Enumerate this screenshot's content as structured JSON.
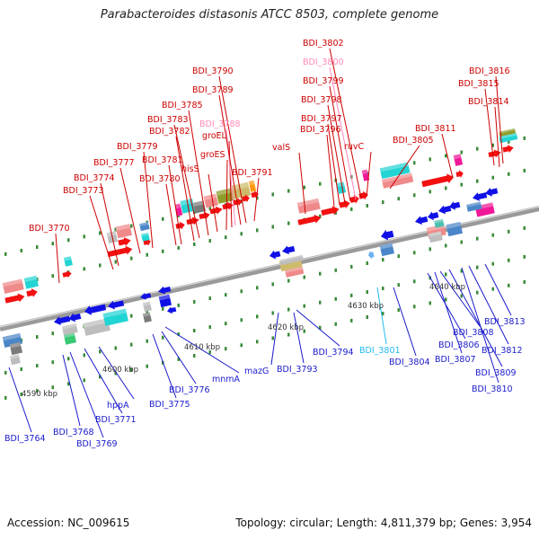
{
  "header": {
    "title": "Parabacteroides distasonis ATCC 8503, complete genome"
  },
  "footer": {
    "accession": "Accession: NC_009615",
    "summary": "Topology: circular; Length: 4,811,379 bp; Genes: 3,954"
  },
  "colors": {
    "forward_label": "#cc0000",
    "reverse_label": "#1a1acc",
    "rna_label": "#ff88bb",
    "pseudo_label": "#22bbee",
    "axis": "#8a8a8a"
  },
  "kbp_ticks": [
    "4590 kbp",
    "4600 kbp",
    "4610 kbp",
    "4620 kbp",
    "4630 kbp",
    "4640 kbp"
  ],
  "top_labels": [
    {
      "text": "BDI_3770",
      "kind": "forward"
    },
    {
      "text": "BDI_3773",
      "kind": "forward"
    },
    {
      "text": "BDI_3774",
      "kind": "forward"
    },
    {
      "text": "BDI_3777",
      "kind": "forward"
    },
    {
      "text": "BDI_3779",
      "kind": "forward"
    },
    {
      "text": "BDI_3780",
      "kind": "forward"
    },
    {
      "text": "BDI_3781",
      "kind": "forward"
    },
    {
      "text": "BDI_3782",
      "kind": "forward"
    },
    {
      "text": "BDI_3783",
      "kind": "forward"
    },
    {
      "text": "BDI_3785",
      "kind": "forward"
    },
    {
      "text": "hisS",
      "kind": "forward"
    },
    {
      "text": "groES",
      "kind": "forward"
    },
    {
      "text": "groEL",
      "kind": "forward"
    },
    {
      "text": "BDI_3788",
      "kind": "rna"
    },
    {
      "text": "BDI_3789",
      "kind": "forward"
    },
    {
      "text": "BDI_3790",
      "kind": "forward"
    },
    {
      "text": "BDI_3791",
      "kind": "forward"
    },
    {
      "text": "valS",
      "kind": "forward"
    },
    {
      "text": "BDI_3796",
      "kind": "forward"
    },
    {
      "text": "BDI_3797",
      "kind": "forward"
    },
    {
      "text": "BDI_3798",
      "kind": "forward"
    },
    {
      "text": "BDI_3799",
      "kind": "forward"
    },
    {
      "text": "BDI_3800",
      "kind": "rna"
    },
    {
      "text": "BDI_3802",
      "kind": "forward"
    },
    {
      "text": "ruvC",
      "kind": "forward"
    },
    {
      "text": "BDI_3805",
      "kind": "forward"
    },
    {
      "text": "BDI_3811",
      "kind": "forward"
    },
    {
      "text": "BDI_3814",
      "kind": "forward"
    },
    {
      "text": "BDI_3815",
      "kind": "forward"
    },
    {
      "text": "BDI_3816",
      "kind": "forward"
    }
  ],
  "bottom_labels": [
    {
      "text": "BDI_3764",
      "kind": "reverse"
    },
    {
      "text": "BDI_3768",
      "kind": "reverse"
    },
    {
      "text": "BDI_3769",
      "kind": "reverse"
    },
    {
      "text": "BDI_3771",
      "kind": "reverse"
    },
    {
      "text": "hppA",
      "kind": "reverse"
    },
    {
      "text": "BDI_3775",
      "kind": "reverse"
    },
    {
      "text": "BDI_3776",
      "kind": "reverse"
    },
    {
      "text": "mnmA",
      "kind": "reverse"
    },
    {
      "text": "mazG",
      "kind": "reverse"
    },
    {
      "text": "BDI_3793",
      "kind": "reverse"
    },
    {
      "text": "BDI_3794",
      "kind": "reverse"
    },
    {
      "text": "BDI_3801",
      "kind": "pseudo"
    },
    {
      "text": "BDI_3804",
      "kind": "reverse"
    },
    {
      "text": "BDI_3806",
      "kind": "reverse"
    },
    {
      "text": "BDI_3807",
      "kind": "reverse"
    },
    {
      "text": "BDI_3808",
      "kind": "reverse"
    },
    {
      "text": "BDI_3809",
      "kind": "reverse"
    },
    {
      "text": "BDI_3810",
      "kind": "reverse"
    },
    {
      "text": "BDI_3812",
      "kind": "reverse"
    },
    {
      "text": "BDI_3813",
      "kind": "reverse"
    }
  ]
}
